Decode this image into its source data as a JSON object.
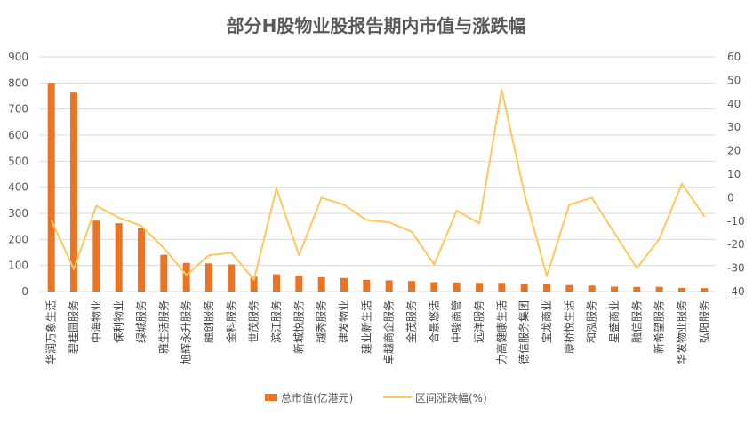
{
  "chart_data": {
    "type": "bar+line",
    "title": "部分H股物业股报告期内市值与涨跌幅",
    "categories": [
      "华润万象生活",
      "碧桂园服务",
      "中海物业",
      "保利物业",
      "绿城服务",
      "雅生活服务",
      "旭辉永升服务",
      "融创服务",
      "金科服务",
      "世茂服务",
      "滨江服务",
      "新城悦服务",
      "越秀服务",
      "建发物业",
      "建业新生活",
      "卓越商企服务",
      "金茂服务",
      "合景悠活",
      "中骏商管",
      "远洋服务",
      "力高健康生活",
      "德信服务集团",
      "宝龙商业",
      "康桥悦生活",
      "和泓服务",
      "星盛商业",
      "融信服务",
      "新希望服务",
      "华发物业服务",
      "弘阳服务"
    ],
    "series": [
      {
        "name": "总市值(亿港元)",
        "type": "bar",
        "axis": "left",
        "color": "#E97424",
        "values": [
          800,
          763,
          272,
          262,
          243,
          141,
          110,
          108,
          104,
          57,
          66,
          61,
          55,
          52,
          45,
          43,
          40,
          36,
          35,
          33,
          33,
          30,
          28,
          25,
          23,
          19,
          18,
          18,
          14,
          13
        ]
      },
      {
        "name": "区间涨跌幅(%)",
        "type": "line",
        "axis": "right",
        "color": "#FFC85C",
        "values": [
          -9.5,
          -30.5,
          -3.5,
          -8.5,
          -12,
          -21.5,
          -33,
          -24.5,
          -23.5,
          -35,
          4,
          -24.5,
          0,
          -3,
          -9.5,
          -10.5,
          -14.5,
          -28.5,
          -5.5,
          -11,
          46,
          2,
          -33.5,
          -3,
          0,
          -15,
          -30,
          -17.5,
          6,
          -8
        ]
      }
    ],
    "y_left": {
      "min": 0,
      "max": 900,
      "ticks": [
        0,
        100,
        200,
        300,
        400,
        500,
        600,
        700,
        800,
        900
      ]
    },
    "y_right": {
      "min": -40,
      "max": 60,
      "ticks": [
        -40,
        -30,
        -20,
        -10,
        0,
        10,
        20,
        30,
        40,
        50,
        60
      ]
    },
    "grid": true,
    "legend": "bottom"
  }
}
